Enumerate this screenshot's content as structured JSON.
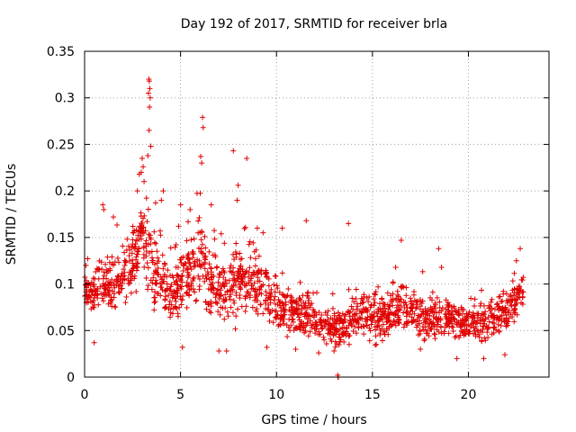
{
  "chart_data": {
    "type": "scatter",
    "title": "Day 192 of 2017, SRMTID for receiver brla",
    "xlabel": "GPS time / hours",
    "ylabel": "SRMTID / TECUs",
    "xlim": [
      0,
      24.2
    ],
    "ylim": [
      0,
      0.35
    ],
    "xticks": [
      0,
      5,
      10,
      15,
      20
    ],
    "xtick_labels": [
      "0",
      "5",
      "10",
      "15",
      "20"
    ],
    "yticks": [
      0,
      0.05,
      0.1,
      0.15,
      0.2,
      0.25,
      0.3,
      0.35
    ],
    "ytick_labels": [
      "0",
      "0.05",
      "0.1",
      "0.15",
      "0.2",
      "0.25",
      "0.3",
      "0.35"
    ],
    "grid": true,
    "marker": "+",
    "color": "#e00000",
    "series": [
      {
        "name": "SRMTID",
        "envelope": {
          "x": [
            0,
            0.5,
            1,
            1.5,
            2,
            2.5,
            2.8,
            3,
            3.3,
            3.5,
            4,
            4.5,
            5,
            5.5,
            6,
            6.3,
            6.7,
            7,
            7.5,
            8,
            8.5,
            9,
            9.5,
            10,
            10.5,
            11,
            11.5,
            12,
            12.5,
            13,
            13.5,
            14,
            14.5,
            15,
            15.5,
            16,
            16.5,
            17,
            17.5,
            18,
            18.5,
            19,
            19.5,
            20,
            20.5,
            21,
            21.5,
            22,
            22.5,
            22.9
          ],
          "center": [
            0.095,
            0.09,
            0.1,
            0.095,
            0.11,
            0.12,
            0.14,
            0.15,
            0.14,
            0.12,
            0.1,
            0.09,
            0.1,
            0.11,
            0.12,
            0.11,
            0.1,
            0.095,
            0.09,
            0.1,
            0.11,
            0.1,
            0.09,
            0.075,
            0.07,
            0.065,
            0.065,
            0.06,
            0.055,
            0.05,
            0.055,
            0.065,
            0.07,
            0.06,
            0.065,
            0.07,
            0.075,
            0.07,
            0.065,
            0.06,
            0.06,
            0.065,
            0.06,
            0.055,
            0.055,
            0.06,
            0.065,
            0.07,
            0.08,
            0.1
          ],
          "spread": [
            0.03,
            0.035,
            0.045,
            0.04,
            0.04,
            0.05,
            0.06,
            0.07,
            0.08,
            0.06,
            0.05,
            0.045,
            0.05,
            0.05,
            0.06,
            0.06,
            0.05,
            0.045,
            0.045,
            0.05,
            0.05,
            0.045,
            0.04,
            0.035,
            0.03,
            0.03,
            0.03,
            0.028,
            0.025,
            0.025,
            0.028,
            0.035,
            0.035,
            0.03,
            0.035,
            0.035,
            0.04,
            0.035,
            0.03,
            0.03,
            0.03,
            0.03,
            0.028,
            0.028,
            0.028,
            0.03,
            0.03,
            0.03,
            0.035,
            0.03
          ]
        },
        "points": [
          [
            3.35,
            0.32
          ],
          [
            3.37,
            0.318
          ],
          [
            3.4,
            0.31
          ],
          [
            3.33,
            0.305
          ],
          [
            3.42,
            0.3
          ],
          [
            3.38,
            0.29
          ],
          [
            3.36,
            0.265
          ],
          [
            3.45,
            0.248
          ],
          [
            6.15,
            0.279
          ],
          [
            6.18,
            0.268
          ],
          [
            6.05,
            0.237
          ],
          [
            6.1,
            0.23
          ],
          [
            7.75,
            0.243
          ],
          [
            8.45,
            0.235
          ],
          [
            8.0,
            0.206
          ],
          [
            7.95,
            0.19
          ],
          [
            3.0,
            0.235
          ],
          [
            3.05,
            0.226
          ],
          [
            2.95,
            0.22
          ],
          [
            2.85,
            0.218
          ],
          [
            3.1,
            0.21
          ],
          [
            2.75,
            0.2
          ],
          [
            4.1,
            0.2
          ],
          [
            4.0,
            0.19
          ],
          [
            11.55,
            0.168
          ],
          [
            13.75,
            0.165
          ],
          [
            10.3,
            0.16
          ],
          [
            16.5,
            0.147
          ],
          [
            18.45,
            0.138
          ],
          [
            22.7,
            0.138
          ],
          [
            22.5,
            0.125
          ],
          [
            18.6,
            0.118
          ],
          [
            0.95,
            0.185
          ],
          [
            1.0,
            0.18
          ],
          [
            1.5,
            0.172
          ],
          [
            5.0,
            0.185
          ],
          [
            5.5,
            0.18
          ],
          [
            6.6,
            0.185
          ],
          [
            9.0,
            0.16
          ],
          [
            9.3,
            0.155
          ],
          [
            13.2,
            0.0
          ],
          [
            13.22,
            0.0
          ],
          [
            13.19,
            0.002
          ],
          [
            19.4,
            0.02
          ],
          [
            20.8,
            0.02
          ],
          [
            21.9,
            0.024
          ],
          [
            12.2,
            0.026
          ],
          [
            13.0,
            0.028
          ],
          [
            11.0,
            0.03
          ],
          [
            7.0,
            0.028
          ],
          [
            7.4,
            0.028
          ],
          [
            0.5,
            0.037
          ],
          [
            5.1,
            0.032
          ],
          [
            9.5,
            0.032
          ],
          [
            17.5,
            0.03
          ],
          [
            15.2,
            0.035
          ]
        ]
      }
    ]
  }
}
